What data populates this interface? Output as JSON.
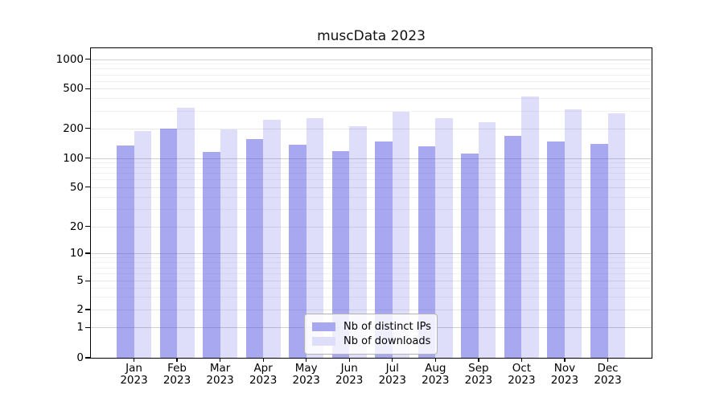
{
  "chart_data": {
    "type": "bar",
    "title": "muscData 2023",
    "xlabel": "",
    "ylabel": "",
    "months": [
      "Jan",
      "Feb",
      "Mar",
      "Apr",
      "May",
      "Jun",
      "Jul",
      "Aug",
      "Sep",
      "Oct",
      "Nov",
      "Dec"
    ],
    "year": "2023",
    "series": [
      {
        "name": "Nb of distinct IPs",
        "color": "#a8a8f1",
        "fill": "rgba(70,70,225,0.47)",
        "values": [
          135,
          200,
          115,
          155,
          137,
          118,
          147,
          132,
          111,
          167,
          148,
          140
        ]
      },
      {
        "name": "Nb of downloads",
        "color": "#dedefa",
        "fill": "rgba(70,70,225,0.18)",
        "values": [
          187,
          320,
          197,
          242,
          251,
          211,
          292,
          254,
          229,
          418,
          312,
          282
        ]
      }
    ],
    "y_axis": {
      "scale": "log-like",
      "ylim": [
        0,
        1000
      ],
      "ticks": [
        0,
        1,
        2,
        5,
        10,
        20,
        50,
        100,
        200,
        500,
        1000
      ],
      "minor_ticks": [
        3,
        4,
        6,
        7,
        8,
        9,
        30,
        40,
        60,
        70,
        80,
        90,
        300,
        400,
        600,
        700,
        800,
        900
      ],
      "anchors": [
        [
          0,
          0.0
        ],
        [
          1,
          0.0979
        ],
        [
          2,
          0.1558
        ],
        [
          5,
          0.2486
        ],
        [
          10,
          0.3377
        ],
        [
          20,
          0.4242
        ],
        [
          50,
          0.5514
        ],
        [
          100,
          0.6449
        ],
        [
          200,
          0.741
        ],
        [
          500,
          0.8693
        ],
        [
          1000,
          0.9644
        ]
      ]
    },
    "legend": {
      "location": "lower center"
    },
    "grid": {
      "decade_color": "#d0d0d0",
      "major_color": "#e7e7e7",
      "minor_color": "#f2f2f2"
    }
  }
}
